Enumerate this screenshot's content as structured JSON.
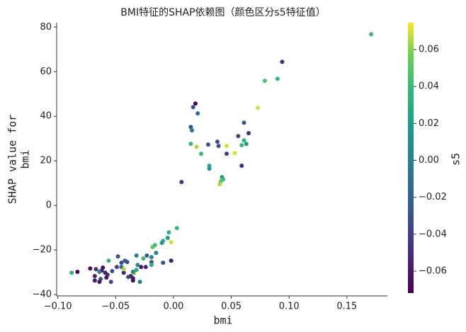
{
  "chart_data": {
    "type": "scatter",
    "title": "BMI特征的SHAP依赖图（颜色区分s5特征值）",
    "xlabel": "bmi",
    "ylabel": [
      "SHAP value for",
      "bmi"
    ],
    "colormap": "viridis",
    "xlim": [
      -0.101,
      0.185
    ],
    "ylim": [
      -40.6,
      82
    ],
    "xticks": [
      {
        "value": -0.1,
        "label": "−0.10"
      },
      {
        "value": -0.05,
        "label": "−0.05"
      },
      {
        "value": 0,
        "label": "0.00"
      },
      {
        "value": 0.05,
        "label": "0.05"
      },
      {
        "value": 0.1,
        "label": "0.10"
      },
      {
        "value": 0.15,
        "label": "0.15"
      }
    ],
    "yticks": [
      {
        "value": -40,
        "label": "−40"
      },
      {
        "value": -20,
        "label": "−20"
      },
      0,
      20,
      40,
      60,
      80
    ],
    "colorbar": {
      "label": "s5",
      "lim": [
        -0.0719,
        0.0746
      ],
      "ticks": [
        {
          "value": -0.06,
          "label": "−0.06"
        },
        {
          "value": -0.04,
          "label": "−0.04"
        },
        {
          "value": -0.02,
          "label": "−0.02"
        },
        {
          "value": 0,
          "label": "0.00"
        },
        {
          "value": 0.02,
          "label": "0.02"
        },
        {
          "value": 0.04,
          "label": "0.04"
        },
        {
          "value": 0.06,
          "label": "0.06"
        }
      ]
    },
    "series": [
      {
        "x": [
          0.171,
          0.094,
          0.09,
          0.079,
          0.073,
          0.019,
          0.017,
          0.021,
          0.015,
          0.016,
          0.015,
          0.02,
          0.03,
          0.038,
          0.039,
          0.024,
          0.031,
          0.031,
          0.046,
          0.046,
          0.053,
          0.056,
          0.061,
          0.065,
          0.061,
          0.063,
          0.059,
          0.059,
          0.042,
          0.043,
          0.041,
          0.04,
          0.007,
          0.003,
          -0.004,
          -0.005,
          -0.009,
          -0.01,
          -0.002,
          -0.016,
          -0.018,
          -0.002,
          -0.009,
          -0.015,
          -0.019,
          -0.019,
          -0.019,
          -0.023,
          -0.026,
          -0.032,
          -0.031,
          -0.028,
          -0.024,
          -0.032,
          -0.034,
          -0.029,
          -0.037,
          -0.035,
          -0.035,
          -0.04,
          -0.042,
          -0.048,
          -0.045,
          -0.045,
          -0.049,
          -0.043,
          -0.043,
          -0.039,
          -0.035,
          -0.053,
          -0.057,
          -0.059,
          -0.056,
          -0.061,
          -0.062,
          -0.063,
          -0.058,
          -0.054,
          -0.064,
          -0.068,
          -0.068,
          -0.067,
          -0.072,
          -0.083,
          -0.088,
          -0.064
        ],
        "values": [
          76.8,
          64.4,
          56.8,
          55.9,
          43.8,
          45.7,
          44.1,
          41.3,
          35.2,
          33.7,
          27.6,
          26.3,
          27.3,
          28.6,
          26.7,
          23.2,
          17.8,
          16.5,
          23.2,
          26.7,
          23.5,
          31.1,
          37.1,
          32.4,
          29.2,
          27.6,
          27.0,
          17.8,
          12.7,
          11.7,
          10.8,
          9.5,
          10.5,
          -10.2,
          -12.1,
          -14.6,
          -15.9,
          -16.8,
          -16.5,
          -17.8,
          -18.7,
          -24.8,
          -25.7,
          -21.3,
          -23.2,
          -25.4,
          -26.7,
          -22.5,
          -23.8,
          -22.5,
          -26.7,
          -27.6,
          -27.6,
          -28.9,
          -30.5,
          -34.3,
          -31.7,
          -32.7,
          -29.8,
          -25.4,
          -24.8,
          -22.9,
          -25.7,
          -27.6,
          -27.6,
          -30.2,
          -28.6,
          -32.1,
          -33.7,
          -29.5,
          -31.1,
          -30.2,
          -24.8,
          -27.9,
          -29.2,
          -33.0,
          -32.4,
          -34.3,
          -29.8,
          -33.7,
          -31.7,
          -28.6,
          -28.3,
          -29.8,
          -30.2,
          -34.3
        ],
        "c": [
          0.04,
          -0.05,
          0.035,
          0.045,
          0.07,
          -0.07,
          -0.03,
          -0.01,
          -0.03,
          -0.005,
          0.04,
          0.065,
          -0.03,
          -0.035,
          -0.03,
          0.04,
          0.03,
          0.01,
          -0.04,
          0.07,
          0.07,
          -0.035,
          -0.03,
          -0.05,
          0.035,
          0.02,
          0.04,
          -0.05,
          0.01,
          0.04,
          0.05,
          0.065,
          -0.045,
          0.04,
          0.035,
          0.02,
          0.035,
          0.015,
          0.07,
          0.04,
          0.05,
          -0.06,
          -0.03,
          0.0,
          0.0,
          -0.03,
          0.035,
          -0.025,
          0.04,
          0.0,
          0.01,
          -0.06,
          -0.055,
          0.03,
          0.065,
          0.0,
          -0.06,
          -0.06,
          0.0,
          -0.03,
          -0.025,
          -0.03,
          -0.035,
          -0.01,
          -0.04,
          -0.055,
          0.065,
          -0.035,
          -0.065,
          -0.03,
          -0.05,
          -0.06,
          0.035,
          -0.065,
          -0.06,
          -0.03,
          -0.06,
          -0.035,
          0.0,
          -0.06,
          -0.055,
          -0.05,
          -0.065,
          -0.07,
          0.035,
          -0.06
        ]
      }
    ]
  }
}
